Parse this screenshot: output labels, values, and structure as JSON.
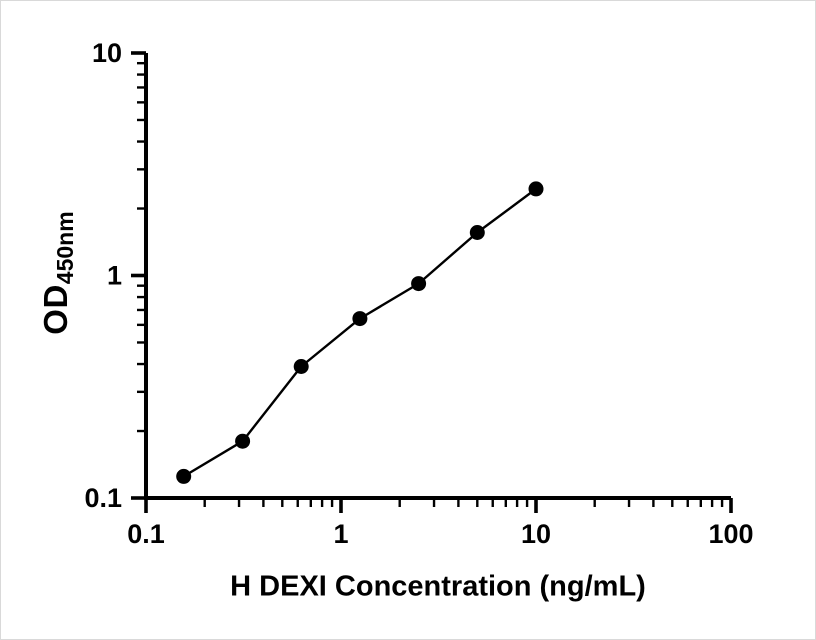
{
  "chart_data": {
    "type": "scatter",
    "x": [
      0.156,
      0.313,
      0.625,
      1.25,
      2.5,
      5,
      10
    ],
    "y": [
      0.125,
      0.18,
      0.39,
      0.64,
      0.92,
      1.56,
      2.45
    ],
    "title": "",
    "xlabel": "H DEXI Concentration (ng/mL)",
    "ylabel_main": "OD",
    "ylabel_sub": "450nm",
    "xlim": [
      0.1,
      100
    ],
    "ylim": [
      0.1,
      10
    ],
    "x_scale": "log",
    "y_scale": "log",
    "x_ticks": [
      0.1,
      1,
      10,
      100
    ],
    "x_tick_labels": [
      "0.1",
      "1",
      "10",
      "100"
    ],
    "y_ticks": [
      0.1,
      1,
      10
    ],
    "y_tick_labels": [
      "0.1",
      "1",
      "10"
    ],
    "grid": false,
    "legend": "none",
    "line_color": "#000000",
    "marker_color": "#000000",
    "axis_color": "#000000"
  }
}
